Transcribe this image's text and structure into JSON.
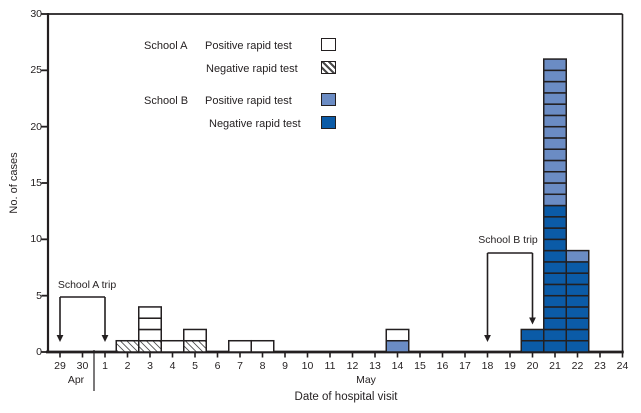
{
  "chart_data": {
    "type": "bar",
    "stacked": true,
    "title": "",
    "xlabel": "Date of hospital visit",
    "ylabel": "No. of cases",
    "ylim": [
      0,
      30
    ],
    "y_ticks": [
      0,
      5,
      10,
      15,
      20,
      25,
      30
    ],
    "grid": false,
    "legend_position": "top-left-inside",
    "month_labels": [
      "Apr",
      "May"
    ],
    "categories": [
      "Apr 29",
      "Apr 30",
      "May 1",
      "May 2",
      "May 3",
      "May 4",
      "May 5",
      "May 6",
      "May 7",
      "May 8",
      "May 9",
      "May 10",
      "May 11",
      "May 12",
      "May 13",
      "May 14",
      "May 15",
      "May 16",
      "May 17",
      "May 18",
      "May 19",
      "May 20",
      "May 21",
      "May 22",
      "May 23",
      "May 24"
    ],
    "tick_labels": [
      "29",
      "30",
      "1",
      "2",
      "3",
      "4",
      "5",
      "6",
      "7",
      "8",
      "9",
      "10",
      "11",
      "12",
      "13",
      "14",
      "15",
      "16",
      "17",
      "18",
      "19",
      "20",
      "21",
      "22",
      "23",
      "24"
    ],
    "series": [
      {
        "name": "School B Negative rapid test",
        "key": "b_neg",
        "color": "#0b5ba7",
        "values": [
          0,
          0,
          0,
          0,
          0,
          0,
          0,
          0,
          0,
          0,
          0,
          0,
          0,
          0,
          0,
          0,
          0,
          0,
          0,
          0,
          0,
          2,
          13,
          8,
          0,
          0
        ]
      },
      {
        "name": "School B Positive rapid test",
        "key": "b_pos",
        "color": "#6b8cc4",
        "values": [
          0,
          0,
          0,
          0,
          0,
          0,
          0,
          0,
          0,
          0,
          0,
          0,
          0,
          0,
          0,
          1,
          0,
          0,
          0,
          0,
          0,
          0,
          13,
          1,
          0,
          0
        ]
      },
      {
        "name": "School A Negative rapid test",
        "key": "a_neg",
        "color": "hatch",
        "values": [
          0,
          0,
          0,
          1,
          1,
          0,
          1,
          0,
          0,
          0,
          0,
          0,
          0,
          0,
          0,
          0,
          0,
          0,
          0,
          0,
          0,
          0,
          0,
          0,
          0,
          0
        ]
      },
      {
        "name": "School A Positive rapid test",
        "key": "a_pos",
        "color": "#ffffff",
        "values": [
          0,
          0,
          0,
          0,
          3,
          1,
          1,
          0,
          1,
          1,
          0,
          0,
          0,
          0,
          0,
          1,
          0,
          0,
          0,
          0,
          0,
          0,
          0,
          0,
          0,
          0
        ]
      }
    ],
    "annotations": [
      {
        "text": "School A trip",
        "from_category": "Apr 29",
        "to_category": "May 1",
        "from_index": 0,
        "to_index": 2
      },
      {
        "text": "School B trip",
        "from_category": "May 18",
        "to_category": "May 20",
        "from_index": 19,
        "to_index": 21
      }
    ]
  },
  "legend": {
    "groups": [
      {
        "school": "School A",
        "entries": [
          {
            "label": "Positive rapid test",
            "key": "a_pos"
          },
          {
            "label": "Negative rapid test",
            "key": "a_neg"
          }
        ]
      },
      {
        "school": "School B",
        "entries": [
          {
            "label": "Positive rapid test",
            "key": "b_pos"
          },
          {
            "label": "Negative rapid test",
            "key": "b_neg"
          }
        ]
      }
    ]
  },
  "colors": {
    "ink": "#231f20",
    "school_b_positive": "#6b8cc4",
    "school_b_negative": "#0b5ba7",
    "school_a_positive": "#ffffff",
    "hatch_line": "#4a4a4a"
  }
}
